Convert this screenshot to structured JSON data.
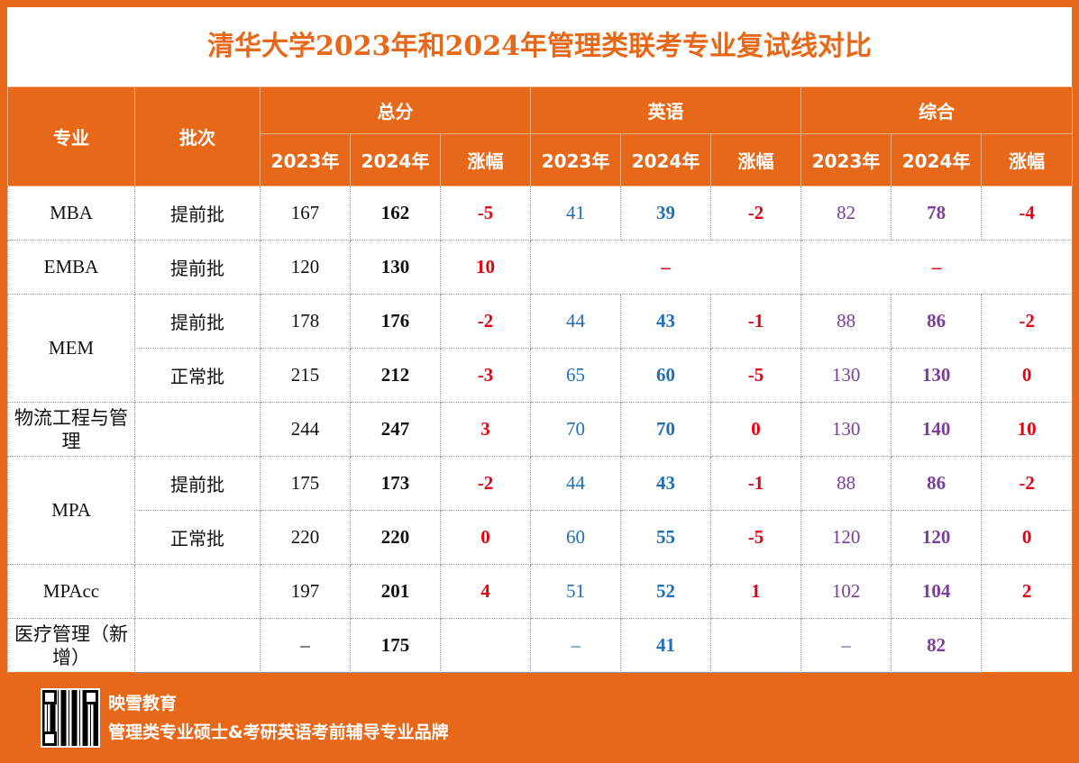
{
  "title": "清华大学2023年和2024年管理类联考专业复试线对比",
  "header": {
    "major": "专业",
    "batch": "批次",
    "groups": [
      "总分",
      "英语",
      "综合"
    ],
    "sub": [
      "2023年",
      "2024年",
      "涨幅"
    ]
  },
  "rows": [
    {
      "major": "MBA",
      "batch": "提前批",
      "t23": "167",
      "t24": "162",
      "td": "-5",
      "e23": "41",
      "e24": "39",
      "ed": "-2",
      "c23": "82",
      "c24": "78",
      "cd": "-4"
    },
    {
      "major": "EMBA",
      "batch": "提前批",
      "t23": "120",
      "t24": "130",
      "td": "10",
      "e_merged": "–",
      "c_merged": "–"
    },
    {
      "major": "MEM",
      "batch": "提前批",
      "t23": "178",
      "t24": "176",
      "td": "-2",
      "e23": "44",
      "e24": "43",
      "ed": "-1",
      "c23": "88",
      "c24": "86",
      "cd": "-2"
    },
    {
      "batch": "正常批",
      "t23": "215",
      "t24": "212",
      "td": "-3",
      "e23": "65",
      "e24": "60",
      "ed": "-5",
      "c23": "130",
      "c24": "130",
      "cd": "0"
    },
    {
      "major": "物流工程与管理",
      "batch": "",
      "t23": "244",
      "t24": "247",
      "td": "3",
      "e23": "70",
      "e24": "70",
      "ed": "0",
      "c23": "130",
      "c24": "140",
      "cd": "10"
    },
    {
      "major": "MPA",
      "batch": "提前批",
      "t23": "175",
      "t24": "173",
      "td": "-2",
      "e23": "44",
      "e24": "43",
      "ed": "-1",
      "c23": "88",
      "c24": "86",
      "cd": "-2"
    },
    {
      "batch": "正常批",
      "t23": "220",
      "t24": "220",
      "td": "0",
      "e23": "60",
      "e24": "55",
      "ed": "-5",
      "c23": "120",
      "c24": "120",
      "cd": "0"
    },
    {
      "major": "MPAcc",
      "batch": "",
      "t23": "197",
      "t24": "201",
      "td": "4",
      "e23": "51",
      "e24": "52",
      "ed": "1",
      "c23": "102",
      "c24": "104",
      "cd": "2"
    },
    {
      "major": "医疗管理（新增）",
      "batch": "",
      "t23": "–",
      "t24": "175",
      "td": "",
      "e23": "–",
      "e24": "41",
      "ed": "",
      "c23": "–",
      "c24": "82",
      "cd": ""
    }
  ],
  "footer": {
    "brand": "映雪教育",
    "slogan": "管理类专业硕士&考研英语考前辅导专业品牌"
  },
  "colors": {
    "accent": "#e8681a",
    "red": "#e60012",
    "blue": "#1f6fb5",
    "purple": "#7a3d9c"
  }
}
